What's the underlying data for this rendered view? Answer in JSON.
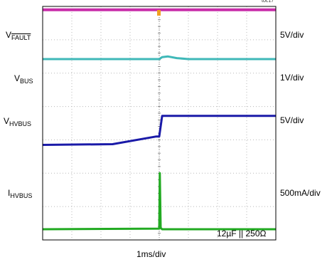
{
  "doc_id": "toc17",
  "channels": [
    {
      "label_main": "V",
      "label_sub": "FAULT",
      "overline": true,
      "scale": "5V/div",
      "color": "#c82ca8"
    },
    {
      "label_main": "V",
      "label_sub": "BUS",
      "overline": false,
      "scale": "1V/div",
      "color": "#3fb8b8"
    },
    {
      "label_main": "V",
      "label_sub": "HVBUS",
      "overline": false,
      "scale": "5V/div",
      "color": "#1a1aa8"
    },
    {
      "label_main": "I",
      "label_sub": "HVBUS",
      "overline": false,
      "scale": "500mA/div",
      "color": "#22aa22"
    }
  ],
  "annotation": "12µF || 250Ω",
  "x_axis_label": "1ms/div",
  "trigger_color": "#f0a020",
  "chart_data": {
    "type": "line",
    "xlabel": "1ms/div",
    "ylabel": "",
    "grid": true,
    "x_divisions": 8,
    "y_divisions": 7,
    "xlim": [
      0,
      8
    ],
    "ylim": [
      0,
      7
    ],
    "series": [
      {
        "name": "VFAULT",
        "x": [
          0,
          8
        ],
        "y": [
          6.9,
          6.9
        ]
      },
      {
        "name": "VBUS",
        "x": [
          0,
          4.0,
          4.1,
          4.3,
          4.6,
          5.0,
          8
        ],
        "y": [
          5.42,
          5.42,
          5.48,
          5.5,
          5.45,
          5.42,
          5.42
        ]
      },
      {
        "name": "VHVBUS",
        "x": [
          0,
          2.4,
          3.9,
          4.0,
          4.1,
          8
        ],
        "y": [
          2.85,
          2.87,
          3.1,
          3.1,
          3.72,
          3.72
        ]
      },
      {
        "name": "IHVBUS",
        "x": [
          0,
          4.0,
          4.02,
          4.05,
          4.1,
          8
        ],
        "y": [
          0.32,
          0.34,
          2.0,
          0.36,
          0.32,
          0.32
        ]
      }
    ]
  }
}
